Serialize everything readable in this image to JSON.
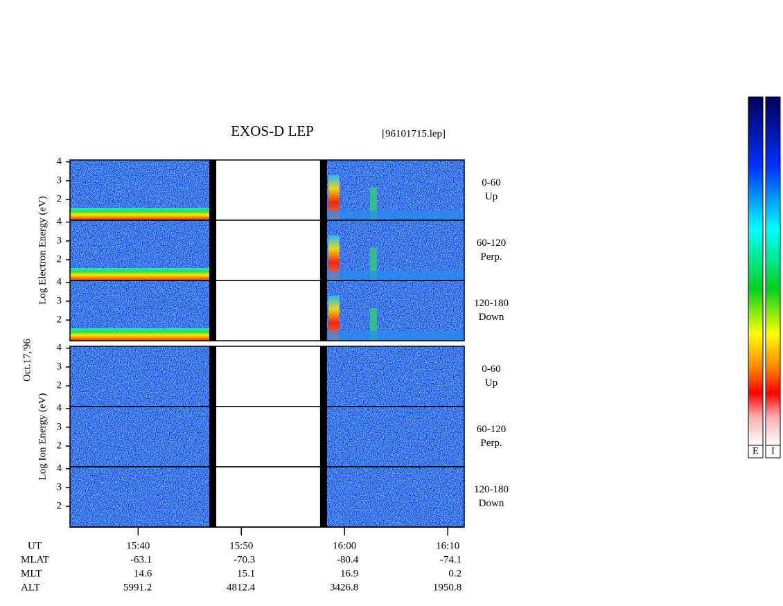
{
  "chart_data": {
    "type": "spectrogram",
    "title": "EXOS-D LEP",
    "file": "[96101715.lep]",
    "date": "Oct.17,'96",
    "xlim": [
      933.4,
      971.6
    ],
    "xticks": [
      {
        "value": 940,
        "label": "15:40"
      },
      {
        "value": 950,
        "label": "15:50"
      },
      {
        "value": 960,
        "label": "16:00"
      },
      {
        "value": 970,
        "label": "16:10"
      }
    ],
    "x_label": "UT",
    "no_data": [
      [
        946.9,
        958.3
      ]
    ],
    "groups": [
      {
        "ylabel": "Log Electron Energy (eV)",
        "ylim": [
          0.9,
          4.1
        ],
        "yticks": [
          2,
          3,
          4
        ],
        "panels": [
          {
            "angle": "0-60",
            "direction": "Up"
          },
          {
            "angle": "60-120",
            "direction": "Perp."
          },
          {
            "angle": "120-180",
            "direction": "Down"
          }
        ]
      },
      {
        "ylabel": "Log Ion Energy (eV)",
        "ylim": [
          0.9,
          4.1
        ],
        "yticks": [
          2,
          3,
          4
        ],
        "panels": [
          {
            "angle": "0-60",
            "direction": "Up"
          },
          {
            "angle": "60-120",
            "direction": "Perp."
          },
          {
            "angle": "120-180",
            "direction": "Down"
          }
        ]
      }
    ],
    "orbit": [
      {
        "name": "MLAT",
        "values": [
          -63.1,
          -70.3,
          -80.4,
          -74.1
        ]
      },
      {
        "name": "MLT",
        "values": [
          14.6,
          15.1,
          16.9,
          0.2
        ]
      },
      {
        "name": "ALT",
        "values": [
          5991.2,
          4812.4,
          3426.8,
          1950.8
        ]
      }
    ],
    "colorbars": [
      "E",
      "I"
    ]
  }
}
